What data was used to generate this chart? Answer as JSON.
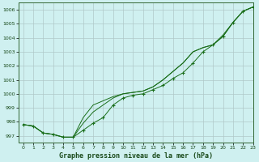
{
  "title": "Graphe pression niveau de la mer (hPa)",
  "bg_color": "#cff0f0",
  "grid_color": "#b0c8c8",
  "line_color": "#1a6e1a",
  "marker_color": "#1a6e1a",
  "xlim": [
    -0.5,
    23
  ],
  "ylim": [
    996.5,
    1006.5
  ],
  "xticks": [
    0,
    1,
    2,
    3,
    4,
    5,
    6,
    7,
    8,
    9,
    10,
    11,
    12,
    13,
    14,
    15,
    16,
    17,
    18,
    19,
    20,
    21,
    22,
    23
  ],
  "yticks": [
    997,
    998,
    999,
    1000,
    1001,
    1002,
    1003,
    1004,
    1005,
    1006
  ],
  "series_with_markers": [
    997.8,
    997.7,
    997.2,
    997.1,
    996.9,
    996.9,
    997.4,
    997.9,
    998.3,
    999.2,
    999.7,
    999.9,
    1000.0,
    1000.3,
    1000.6,
    1001.1,
    1001.5,
    1002.2,
    1003.0,
    1003.5,
    1004.1,
    1005.1,
    1005.9,
    1006.2
  ],
  "series_extra": [
    [
      997.8,
      997.7,
      997.2,
      997.1,
      996.9,
      996.9,
      997.9,
      998.7,
      999.2,
      999.7,
      1000.0,
      1000.1,
      1000.2,
      1000.5,
      1001.0,
      1001.6,
      1002.2,
      1003.0,
      1003.3,
      1003.5,
      1004.1,
      1005.1,
      1005.9,
      1006.2
    ],
    [
      997.8,
      997.7,
      997.2,
      997.1,
      996.9,
      996.9,
      998.3,
      999.2,
      999.5,
      999.8,
      1000.0,
      1000.1,
      1000.2,
      1000.5,
      1001.0,
      1001.6,
      1002.2,
      1003.0,
      1003.3,
      1003.5,
      1004.2,
      1005.1,
      1005.9,
      1006.2
    ]
  ]
}
